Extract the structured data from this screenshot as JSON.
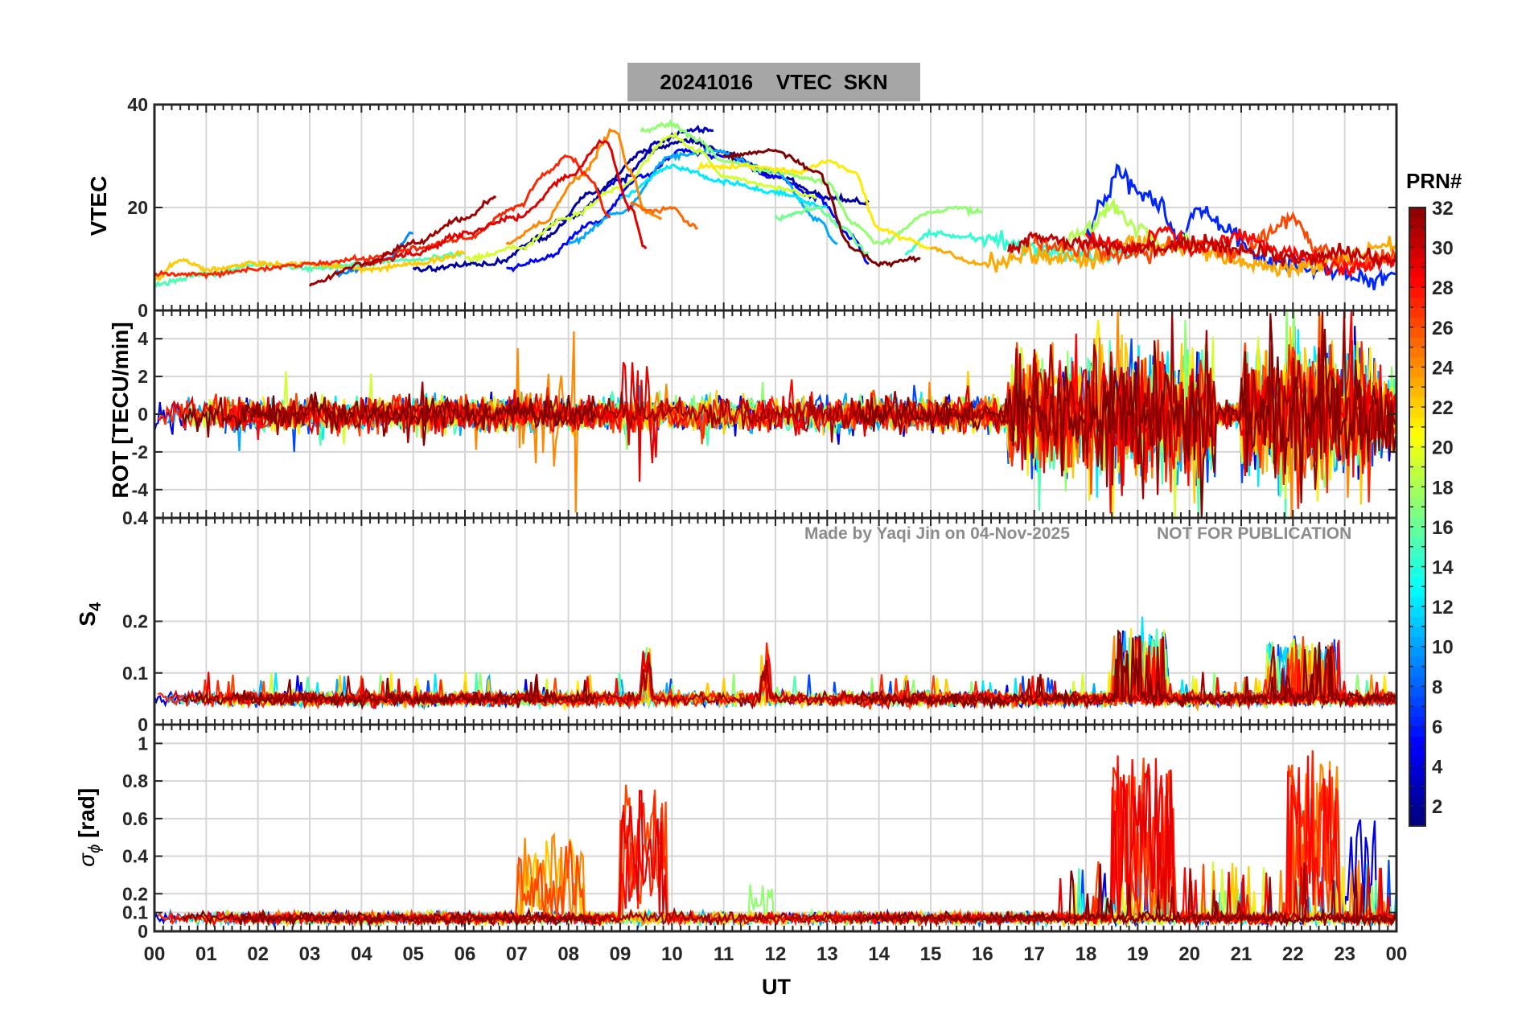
{
  "title": "20241016    VTEC  SKN",
  "colorbar": {
    "title": "PRN#",
    "ticks": [
      "2",
      "4",
      "6",
      "8",
      "10",
      "12",
      "14",
      "16",
      "18",
      "20",
      "22",
      "24",
      "26",
      "28",
      "30",
      "32"
    ],
    "range": [
      1,
      32
    ]
  },
  "watermark": {
    "made_by": "Made by Yaqi Jin on 04-Nov-2025",
    "notice": "NOT FOR PUBLICATION"
  },
  "xaxis": {
    "label": "UT",
    "ticks": [
      "00",
      "01",
      "02",
      "03",
      "04",
      "05",
      "06",
      "07",
      "08",
      "09",
      "10",
      "11",
      "12",
      "13",
      "14",
      "15",
      "16",
      "17",
      "18",
      "19",
      "20",
      "21",
      "22",
      "23",
      "00"
    ],
    "range_hours": [
      0,
      24
    ]
  },
  "panels": [
    {
      "id": "vtec",
      "ylabel": "VTEC",
      "ylim": [
        0,
        40
      ],
      "yticks": [
        0,
        20,
        40
      ],
      "ytick_labels": [
        "0",
        "20",
        "40"
      ]
    },
    {
      "id": "rot",
      "ylabel": "ROT [TECU/min]",
      "ylim": [
        -5.5,
        5.5
      ],
      "yticks": [
        -4,
        -2,
        0,
        2,
        4
      ],
      "ytick_labels": [
        "-4",
        "-2",
        "0",
        "2",
        "4"
      ]
    },
    {
      "id": "s4",
      "ylabel_main": "S",
      "ylabel_sub": "4",
      "ylim": [
        0,
        0.4
      ],
      "yticks": [
        0,
        0.1,
        0.2,
        0.4
      ],
      "ytick_labels": [
        "0",
        "0.1",
        "0.2",
        "0.4"
      ]
    },
    {
      "id": "sigphi",
      "ylabel_main": "σ",
      "ylabel_sub": "ϕ",
      "ylabel_unit": " [rad]",
      "ylim": [
        0,
        1.1
      ],
      "yticks": [
        0,
        0.1,
        0.2,
        0.4,
        0.6,
        0.8,
        1
      ],
      "ytick_labels": [
        "0",
        "0.1",
        "0.2",
        "0.4",
        "0.6",
        "0.8",
        "1"
      ]
    }
  ],
  "chart_data": {
    "type": "line",
    "title": "20241016    VTEC  SKN",
    "xlabel": "UT",
    "x_unit": "hours",
    "note": "Per-satellite (PRN) ionospheric time series; values approximate, read from the plot.",
    "vtec_tracks": [
      {
        "prn": 2,
        "points": [
          [
            5.0,
            8
          ],
          [
            6.5,
            9
          ],
          [
            7.5,
            14
          ],
          [
            8.5,
            23
          ],
          [
            9.5,
            31
          ],
          [
            10.3,
            33
          ],
          [
            11.0,
            31
          ],
          [
            12.0,
            26
          ],
          [
            13.0,
            22
          ],
          [
            13.8,
            21
          ]
        ]
      },
      {
        "prn": 3,
        "points": [
          [
            7.0,
            12
          ],
          [
            8.0,
            18
          ],
          [
            9.0,
            25
          ],
          [
            9.8,
            33
          ],
          [
            10.3,
            35
          ],
          [
            10.8,
            35
          ]
        ]
      },
      {
        "prn": 5,
        "points": [
          [
            6.8,
            8
          ],
          [
            7.5,
            10
          ],
          [
            8.5,
            17
          ],
          [
            9.4,
            26
          ],
          [
            10.2,
            31
          ],
          [
            11.0,
            30
          ],
          [
            12.0,
            26
          ],
          [
            12.8,
            22
          ],
          [
            13.5,
            14
          ],
          [
            13.8,
            9
          ]
        ]
      },
      {
        "prn": 6,
        "points": [
          [
            18.0,
            15
          ],
          [
            18.4,
            22
          ],
          [
            18.6,
            27
          ],
          [
            19.0,
            23
          ],
          [
            19.4,
            21
          ],
          [
            19.8,
            14
          ],
          [
            20.2,
            20
          ],
          [
            20.6,
            16
          ],
          [
            21.5,
            10
          ],
          [
            22.5,
            8
          ],
          [
            23.5,
            6
          ],
          [
            24.0,
            7
          ]
        ]
      },
      {
        "prn": 9,
        "points": [
          [
            3.5,
            7
          ],
          [
            4.5,
            10
          ],
          [
            5.0,
            15
          ]
        ]
      },
      {
        "prn": 10,
        "points": [
          [
            8.0,
            13
          ],
          [
            9.0,
            19
          ],
          [
            10.0,
            30
          ],
          [
            10.8,
            31
          ],
          [
            12.0,
            27
          ],
          [
            12.8,
            18
          ],
          [
            13.2,
            13
          ]
        ]
      },
      {
        "prn": 12,
        "points": [
          [
            9.0,
            22
          ],
          [
            10.0,
            28
          ],
          [
            11.0,
            25
          ],
          [
            12.0,
            23
          ],
          [
            13.0,
            20
          ]
        ]
      },
      {
        "prn": 14,
        "points": [
          [
            14.5,
            11
          ],
          [
            15.0,
            15
          ],
          [
            16.0,
            14
          ],
          [
            17.0,
            12
          ],
          [
            18.0,
            10
          ],
          [
            19.0,
            12
          ]
        ]
      },
      {
        "prn": 15,
        "points": [
          [
            0.0,
            5
          ],
          [
            1.0,
            7
          ],
          [
            2.0,
            9
          ],
          [
            3.0,
            8
          ],
          [
            4.0,
            9
          ],
          [
            5.0,
            10
          ],
          [
            6.0,
            11
          ]
        ]
      },
      {
        "prn": 16,
        "points": [
          [
            12.0,
            18
          ],
          [
            12.8,
            20
          ],
          [
            13.3,
            16
          ],
          [
            13.8,
            11
          ]
        ]
      },
      {
        "prn": 17,
        "points": [
          [
            9.4,
            35
          ],
          [
            10.0,
            36
          ],
          [
            10.5,
            33
          ],
          [
            11.0,
            29
          ],
          [
            12.0,
            27
          ],
          [
            13.0,
            25
          ],
          [
            13.5,
            17
          ],
          [
            14.0,
            13
          ],
          [
            15.0,
            19
          ],
          [
            15.5,
            20
          ],
          [
            16.0,
            19
          ]
        ]
      },
      {
        "prn": 18,
        "points": [
          [
            17.5,
            12
          ],
          [
            18.0,
            16
          ],
          [
            18.5,
            20
          ],
          [
            19.0,
            16
          ],
          [
            19.5,
            12
          ],
          [
            20.0,
            14
          ]
        ]
      },
      {
        "prn": 19,
        "points": [
          [
            6.0,
            10
          ],
          [
            7.0,
            12
          ],
          [
            8.0,
            18
          ],
          [
            9.0,
            24
          ],
          [
            10.0,
            34
          ],
          [
            10.5,
            31
          ],
          [
            11.0,
            26
          ],
          [
            12.0,
            24
          ],
          [
            12.8,
            22
          ]
        ]
      },
      {
        "prn": 21,
        "points": [
          [
            10.5,
            28
          ],
          [
            11.5,
            28
          ],
          [
            12.5,
            27
          ],
          [
            13.0,
            29
          ],
          [
            13.5,
            27
          ],
          [
            14.0,
            16
          ],
          [
            14.5,
            14
          ],
          [
            15.0,
            12
          ]
        ]
      },
      {
        "prn": 22,
        "points": [
          [
            0.0,
            6
          ],
          [
            0.5,
            10
          ],
          [
            1.0,
            8
          ],
          [
            2.0,
            9
          ],
          [
            3.0,
            9
          ],
          [
            4.0,
            8
          ],
          [
            5.0,
            9
          ],
          [
            6.0,
            11
          ]
        ]
      },
      {
        "prn": 23,
        "points": [
          [
            15.0,
            12
          ],
          [
            16.0,
            9
          ],
          [
            17.0,
            11
          ],
          [
            18.0,
            10
          ],
          [
            19.0,
            13
          ],
          [
            20.0,
            12
          ],
          [
            21.0,
            9
          ],
          [
            22.0,
            8
          ],
          [
            23.0,
            11
          ],
          [
            24.0,
            13
          ]
        ]
      },
      {
        "prn": 24,
        "points": [
          [
            6.8,
            13
          ],
          [
            7.5,
            17
          ],
          [
            8.2,
            26
          ],
          [
            8.9,
            35
          ],
          [
            9.2,
            27
          ],
          [
            9.5,
            19
          ],
          [
            9.8,
            18
          ]
        ]
      },
      {
        "prn": 25,
        "points": [
          [
            9.2,
            21
          ],
          [
            9.6,
            19
          ],
          [
            10.0,
            20
          ],
          [
            10.3,
            17
          ],
          [
            10.5,
            16
          ]
        ]
      },
      {
        "prn": 26,
        "points": [
          [
            17.0,
            13
          ],
          [
            18.0,
            12
          ],
          [
            19.0,
            11
          ],
          [
            20.0,
            13
          ],
          [
            21.0,
            11
          ],
          [
            22.0,
            18
          ],
          [
            22.5,
            12
          ],
          [
            23.0,
            9
          ],
          [
            24.0,
            10
          ]
        ]
      },
      {
        "prn": 27,
        "points": [
          [
            0.0,
            7
          ],
          [
            1.0,
            7
          ],
          [
            2.0,
            8
          ],
          [
            3.0,
            9
          ],
          [
            4.0,
            10
          ],
          [
            5.0,
            12
          ],
          [
            6.0,
            14
          ],
          [
            7.0,
            20
          ],
          [
            7.6,
            27
          ],
          [
            8.0,
            30
          ],
          [
            8.4,
            26
          ],
          [
            8.8,
            18
          ]
        ]
      },
      {
        "prn": 28,
        "points": [
          [
            18.0,
            14
          ],
          [
            19.0,
            12
          ],
          [
            19.5,
            16
          ],
          [
            20.0,
            12
          ],
          [
            21.0,
            14
          ],
          [
            22.0,
            11
          ],
          [
            23.0,
            8
          ],
          [
            24.0,
            10
          ]
        ]
      },
      {
        "prn": 29,
        "points": [
          [
            4.0,
            9
          ],
          [
            5.0,
            11
          ],
          [
            6.0,
            15
          ],
          [
            7.0,
            18
          ],
          [
            8.0,
            26
          ],
          [
            8.7,
            33
          ],
          [
            9.2,
            20
          ],
          [
            9.5,
            12
          ]
        ]
      },
      {
        "prn": 31,
        "points": [
          [
            3.0,
            5
          ],
          [
            4.0,
            9
          ],
          [
            5.0,
            13
          ],
          [
            6.0,
            18
          ],
          [
            6.6,
            22
          ]
        ]
      },
      {
        "prn": 32,
        "points": [
          [
            11.0,
            30
          ],
          [
            12.0,
            31
          ],
          [
            12.8,
            27
          ],
          [
            13.5,
            12
          ],
          [
            14.0,
            9
          ],
          [
            14.8,
            10
          ]
        ]
      },
      {
        "prn": 30,
        "points": [
          [
            16.5,
            12
          ],
          [
            17.0,
            14
          ],
          [
            18.0,
            13
          ],
          [
            19.0,
            12
          ],
          [
            20.0,
            13
          ],
          [
            21.0,
            12
          ],
          [
            22.0,
            10
          ],
          [
            23.0,
            11
          ],
          [
            24.0,
            10
          ]
        ]
      }
    ],
    "rot_activity": [
      {
        "ut_range": [
          0,
          16.5
        ],
        "typical_amplitude": 0.6
      },
      {
        "ut_range": [
          7.0,
          8.2
        ],
        "peak_abs": 5.0,
        "prn": 24
      },
      {
        "ut_range": [
          9.0,
          9.7
        ],
        "peak_abs": 5.5,
        "prn": 29
      },
      {
        "ut_range": [
          16.5,
          18.0
        ],
        "typical_amplitude": 2.0
      },
      {
        "ut_range": [
          18.0,
          20.5
        ],
        "peak_abs": 5.5
      },
      {
        "ut_range": [
          21.0,
          23.5
        ],
        "peak_abs": 5.5
      },
      {
        "ut_range": [
          23.5,
          24.0
        ],
        "typical_amplitude": 1.5
      }
    ],
    "s4_activity": [
      {
        "ut_range": [
          0,
          24
        ],
        "baseline": 0.05
      },
      {
        "ut_range": [
          9.4,
          9.6
        ],
        "peak": 0.17,
        "prn": 28
      },
      {
        "ut_range": [
          11.7,
          11.9
        ],
        "peak": 0.17,
        "prn": 28
      },
      {
        "ut_range": [
          18.5,
          19.6
        ],
        "peak": 0.21,
        "prn": 12
      },
      {
        "ut_range": [
          21.5,
          22.9
        ],
        "peak": 0.19,
        "prn": 11
      }
    ],
    "sigphi_activity": [
      {
        "ut_range": [
          0,
          24
        ],
        "baseline": 0.08
      },
      {
        "ut_range": [
          7.0,
          8.3
        ],
        "peak": 0.6,
        "prn": 24
      },
      {
        "ut_range": [
          9.0,
          9.9
        ],
        "peak": 0.9,
        "prn": 28
      },
      {
        "ut_range": [
          11.5,
          12.0
        ],
        "peak": 0.3,
        "prn": 18
      },
      {
        "ut_range": [
          18.5,
          19.7
        ],
        "peak": 1.1,
        "prn": 27
      },
      {
        "ut_range": [
          21.9,
          22.9
        ],
        "peak": 1.1,
        "prn": 26
      },
      {
        "ut_range": [
          23.0,
          23.6
        ],
        "peak": 0.7,
        "prn": 4
      }
    ]
  }
}
